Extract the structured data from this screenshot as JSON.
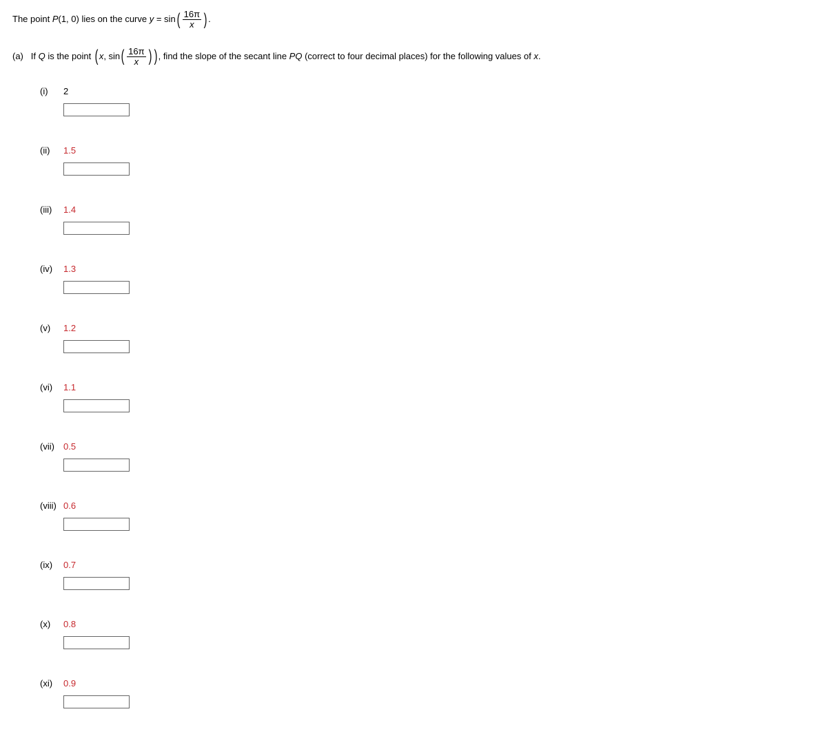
{
  "intro": {
    "prefix": "The point ",
    "P_label": "P",
    "P_args": "(1, 0)",
    "middle": " lies on the curve ",
    "y_eq": "y",
    "equals": " = sin",
    "frac_num": "16π",
    "frac_den": "x",
    "period": "."
  },
  "partA": {
    "label": "(a)",
    "prefix": "If ",
    "Q_label": "Q",
    "is_point": " is the point ",
    "x_var": "x",
    "comma_sin": ", sin",
    "frac_num": "16π",
    "frac_den": "x",
    "tail": ", find the slope of the secant line ",
    "PQ": "PQ",
    "tail2": " (correct to four decimal places) for the following values of ",
    "x_final": "x",
    "period": "."
  },
  "items": [
    {
      "num": "(i)",
      "val": "2",
      "color": "black"
    },
    {
      "num": "(ii)",
      "val": "1.5",
      "color": "red"
    },
    {
      "num": "(iii)",
      "val": "1.4",
      "color": "red"
    },
    {
      "num": "(iv)",
      "val": "1.3",
      "color": "red"
    },
    {
      "num": "(v)",
      "val": "1.2",
      "color": "red"
    },
    {
      "num": "(vi)",
      "val": "1.1",
      "color": "red"
    },
    {
      "num": "(vii)",
      "val": "0.5",
      "color": "red"
    },
    {
      "num": "(viii)",
      "val": "0.6",
      "color": "red"
    },
    {
      "num": "(ix)",
      "val": "0.7",
      "color": "red"
    },
    {
      "num": "(x)",
      "val": "0.8",
      "color": "red"
    },
    {
      "num": "(xi)",
      "val": "0.9",
      "color": "red"
    }
  ]
}
